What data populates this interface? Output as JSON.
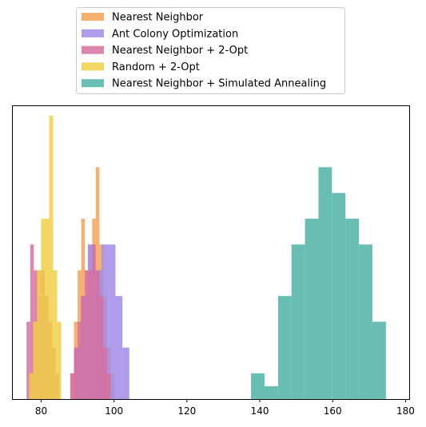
{
  "chart_data": {
    "type": "histogram",
    "title": "",
    "xlabel": "",
    "ylabel": "",
    "xlim": [
      72,
      181
    ],
    "ylim": [
      0,
      11.4
    ],
    "x_ticks": [
      80,
      100,
      120,
      140,
      160,
      180
    ],
    "y_ticks_shown": false,
    "grid": false,
    "legend_position": "above plot, centered",
    "series": [
      {
        "name": "Nearest Neighbor",
        "color": "#F4A259",
        "bins": [
          {
            "x0": 77.0,
            "x1": 78.0,
            "count": 1
          },
          {
            "x0": 78.0,
            "x1": 79.0,
            "count": 3
          },
          {
            "x0": 79.0,
            "x1": 80.0,
            "count": 5
          },
          {
            "x0": 80.0,
            "x1": 81.0,
            "count": 5
          },
          {
            "x0": 81.0,
            "x1": 82.0,
            "count": 4
          },
          {
            "x0": 82.0,
            "x1": 83.0,
            "count": 3
          },
          {
            "x0": 83.0,
            "x1": 84.0,
            "count": 2
          },
          {
            "x0": 84.0,
            "x1": 85.0,
            "count": 1
          },
          {
            "x0": 88.0,
            "x1": 89.0,
            "count": 1
          },
          {
            "x0": 89.0,
            "x1": 90.0,
            "count": 3
          },
          {
            "x0": 90.0,
            "x1": 91.0,
            "count": 5
          },
          {
            "x0": 91.0,
            "x1": 92.0,
            "count": 7
          },
          {
            "x0": 92.0,
            "x1": 93.0,
            "count": 5
          },
          {
            "x0": 93.0,
            "x1": 94.0,
            "count": 6
          },
          {
            "x0": 94.0,
            "x1": 95.0,
            "count": 7
          },
          {
            "x0": 95.0,
            "x1": 96.0,
            "count": 9
          },
          {
            "x0": 96.0,
            "x1": 97.0,
            "count": 6
          },
          {
            "x0": 97.0,
            "x1": 98.0,
            "count": 4
          },
          {
            "x0": 98.0,
            "x1": 99.0,
            "count": 2
          },
          {
            "x0": 99.0,
            "x1": 100.0,
            "count": 1
          }
        ]
      },
      {
        "name": "Ant Colony Optimization",
        "color": "#A18BE6",
        "bins": [
          {
            "x0": 89.0,
            "x1": 90.9,
            "count": 2
          },
          {
            "x0": 90.9,
            "x1": 92.8,
            "count": 4
          },
          {
            "x0": 92.8,
            "x1": 94.7,
            "count": 6
          },
          {
            "x0": 94.7,
            "x1": 96.6,
            "count": 5
          },
          {
            "x0": 96.6,
            "x1": 98.5,
            "count": 6
          },
          {
            "x0": 98.5,
            "x1": 100.4,
            "count": 6
          },
          {
            "x0": 100.4,
            "x1": 102.3,
            "count": 4
          },
          {
            "x0": 102.3,
            "x1": 104.2,
            "count": 2
          }
        ]
      },
      {
        "name": "Nearest Neighbor + 2-Opt",
        "color": "#D670A0",
        "bins": [
          {
            "x0": 76.0,
            "x1": 77.0,
            "count": 3
          },
          {
            "x0": 77.0,
            "x1": 78.0,
            "count": 6
          },
          {
            "x0": 78.0,
            "x1": 79.0,
            "count": 5
          },
          {
            "x0": 79.0,
            "x1": 80.0,
            "count": 4
          },
          {
            "x0": 80.0,
            "x1": 81.0,
            "count": 5
          },
          {
            "x0": 81.0,
            "x1": 82.0,
            "count": 4
          },
          {
            "x0": 82.0,
            "x1": 83.0,
            "count": 3
          },
          {
            "x0": 83.0,
            "x1": 84.0,
            "count": 2
          },
          {
            "x0": 84.0,
            "x1": 85.0,
            "count": 1
          },
          {
            "x0": 88.0,
            "x1": 89.0,
            "count": 1
          },
          {
            "x0": 89.0,
            "x1": 90.0,
            "count": 2
          },
          {
            "x0": 90.0,
            "x1": 91.0,
            "count": 3
          },
          {
            "x0": 91.0,
            "x1": 92.0,
            "count": 4
          },
          {
            "x0": 92.0,
            "x1": 93.0,
            "count": 5
          },
          {
            "x0": 93.0,
            "x1": 94.0,
            "count": 5
          },
          {
            "x0": 94.0,
            "x1": 95.0,
            "count": 6
          },
          {
            "x0": 95.0,
            "x1": 96.0,
            "count": 5
          },
          {
            "x0": 96.0,
            "x1": 97.0,
            "count": 4
          },
          {
            "x0": 97.0,
            "x1": 98.0,
            "count": 2
          },
          {
            "x0": 98.0,
            "x1": 99.0,
            "count": 1
          }
        ]
      },
      {
        "name": "Random + 2-Opt",
        "color": "#F0D04A",
        "bins": [
          {
            "x0": 76.7,
            "x1": 77.8,
            "count": 1
          },
          {
            "x0": 77.8,
            "x1": 78.9,
            "count": 3
          },
          {
            "x0": 78.9,
            "x1": 80.0,
            "count": 5
          },
          {
            "x0": 80.0,
            "x1": 81.1,
            "count": 7
          },
          {
            "x0": 81.1,
            "x1": 82.2,
            "count": 7
          },
          {
            "x0": 82.2,
            "x1": 83.3,
            "count": 11
          },
          {
            "x0": 83.3,
            "x1": 84.4,
            "count": 5
          },
          {
            "x0": 84.4,
            "x1": 85.5,
            "count": 3
          }
        ]
      },
      {
        "name": "Nearest Neighbor + Simulated Annealing",
        "color": "#4DB3A5",
        "bins": [
          {
            "x0": 137.6,
            "x1": 141.3,
            "count": 1
          },
          {
            "x0": 141.3,
            "x1": 145.0,
            "count": 0.5
          },
          {
            "x0": 145.0,
            "x1": 148.7,
            "count": 4
          },
          {
            "x0": 148.7,
            "x1": 152.4,
            "count": 6
          },
          {
            "x0": 152.4,
            "x1": 156.1,
            "count": 7
          },
          {
            "x0": 156.1,
            "x1": 159.8,
            "count": 9
          },
          {
            "x0": 159.8,
            "x1": 163.5,
            "count": 8
          },
          {
            "x0": 163.5,
            "x1": 167.2,
            "count": 7
          },
          {
            "x0": 167.2,
            "x1": 170.9,
            "count": 6
          },
          {
            "x0": 170.9,
            "x1": 174.6,
            "count": 3
          }
        ]
      }
    ]
  }
}
